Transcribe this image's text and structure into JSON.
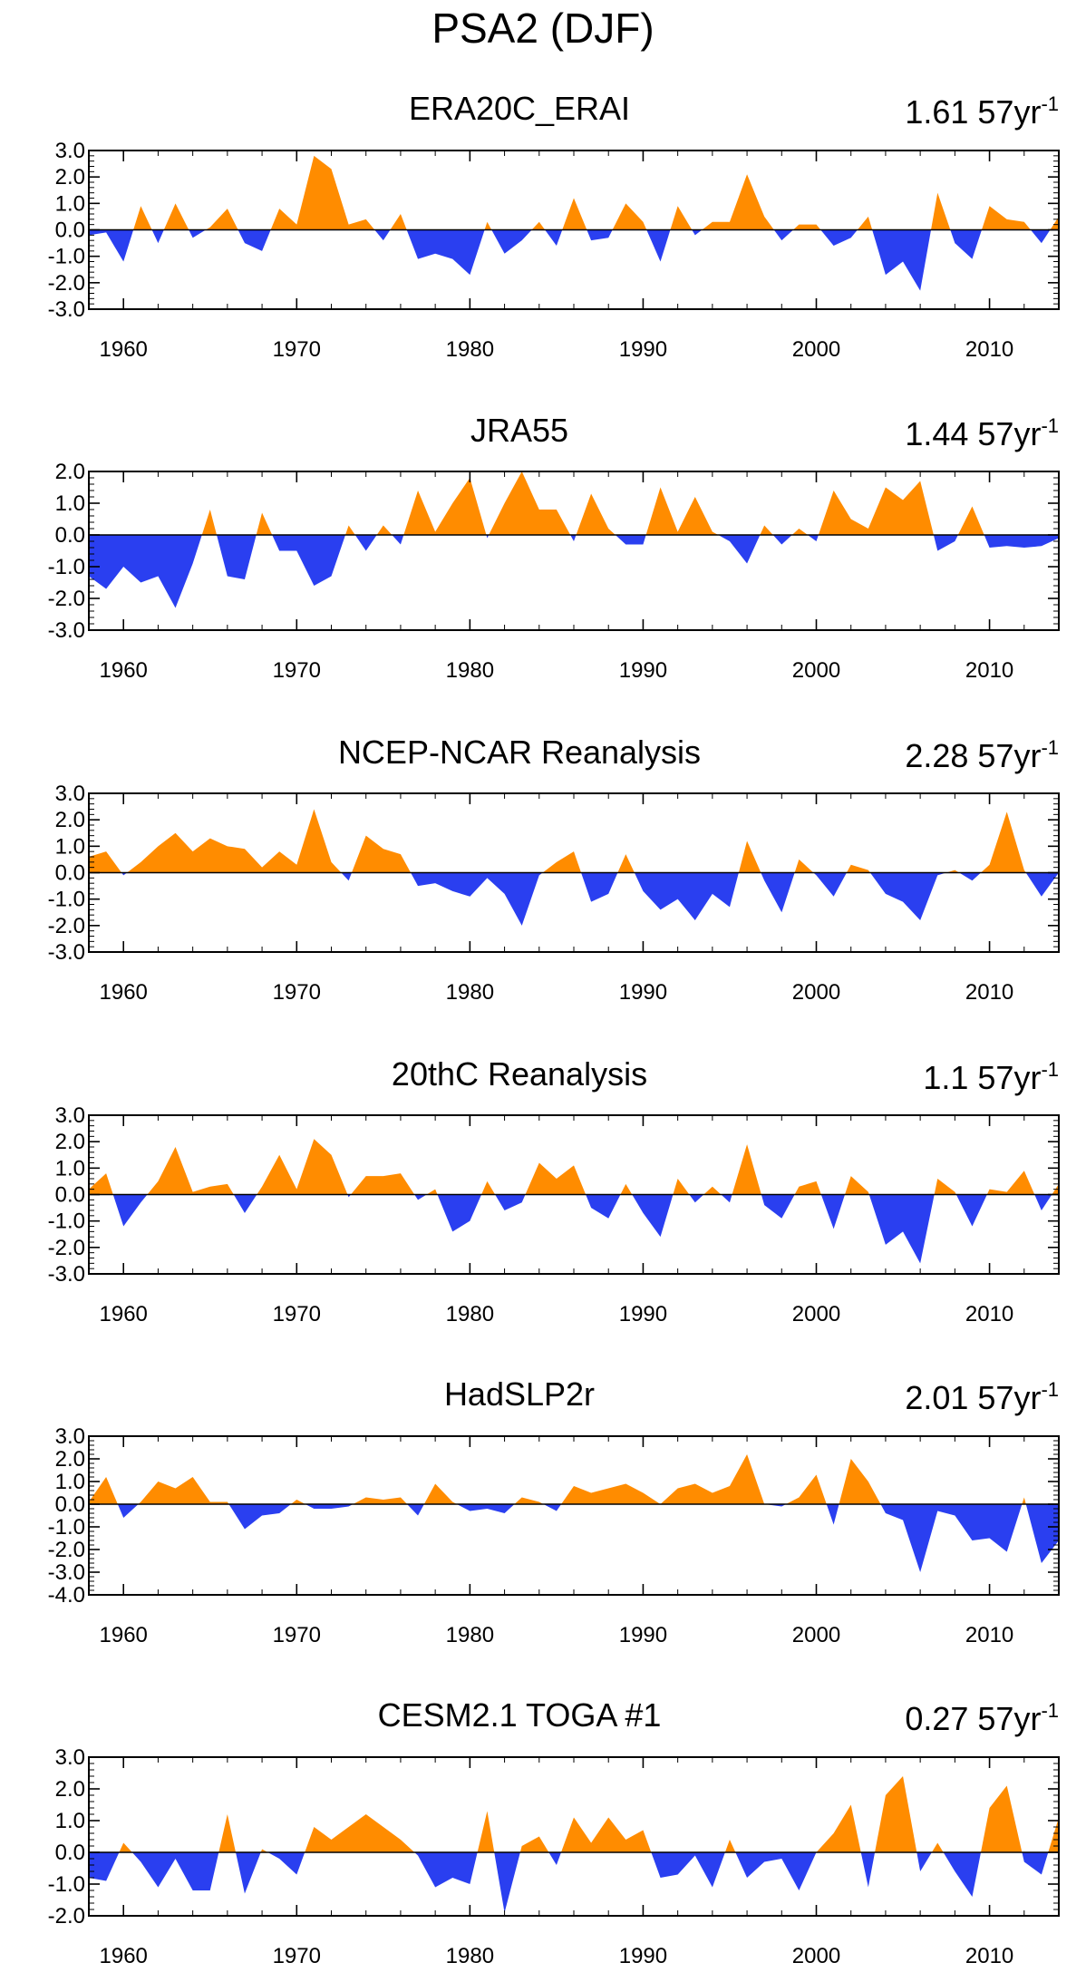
{
  "title": "PSA2 (DJF)",
  "colors": {
    "positive": "#ff8c00",
    "negative": "#2a3ff0",
    "frame": "#000000"
  },
  "chart_data": [
    {
      "type": "area",
      "title": "ERA20C_ERAI",
      "trend_value": "1.61",
      "trend_unit": "57yr",
      "trend_exp": "-1",
      "ylim": [
        -3.0,
        3.0
      ],
      "yticks": [
        "3.0",
        "2.0",
        "1.0",
        "0.0",
        "-1.0",
        "-2.0",
        "-3.0"
      ],
      "xlim": [
        1958,
        2014
      ],
      "xticks": [
        "1960",
        "1970",
        "1980",
        "1990",
        "2000",
        "2010"
      ],
      "x_start": 1958,
      "values": [
        -0.2,
        -0.1,
        -1.2,
        0.9,
        -0.5,
        1.0,
        -0.3,
        0.1,
        0.8,
        -0.5,
        -0.8,
        0.8,
        0.2,
        2.8,
        2.3,
        0.2,
        0.4,
        -0.4,
        0.6,
        -1.1,
        -0.9,
        -1.1,
        -1.7,
        0.3,
        -0.9,
        -0.4,
        0.3,
        -0.6,
        1.2,
        -0.4,
        -0.3,
        1.0,
        0.3,
        -1.2,
        0.9,
        -0.2,
        0.3,
        0.3,
        2.1,
        0.5,
        -0.4,
        0.2,
        0.2,
        -0.6,
        -0.3,
        0.5,
        -1.7,
        -1.2,
        -2.3,
        1.4,
        -0.5,
        -1.1,
        0.9,
        0.4,
        0.3,
        -0.5,
        0.5
      ]
    },
    {
      "type": "area",
      "title": "JRA55",
      "trend_value": "1.44",
      "trend_unit": "57yr",
      "trend_exp": "-1",
      "ylim": [
        -3.0,
        2.0
      ],
      "yticks": [
        "2.0",
        "1.0",
        "0.0",
        "-1.0",
        "-2.0",
        "-3.0"
      ],
      "xlim": [
        1958,
        2014
      ],
      "xticks": [
        "1960",
        "1970",
        "1980",
        "1990",
        "2000",
        "2010"
      ],
      "x_start": 1958,
      "values": [
        -1.3,
        -1.7,
        -1.0,
        -1.5,
        -1.3,
        -2.3,
        -0.9,
        0.8,
        -1.3,
        -1.4,
        0.7,
        -0.5,
        -0.5,
        -1.6,
        -1.3,
        0.3,
        -0.5,
        0.3,
        -0.3,
        1.4,
        0.1,
        1.0,
        1.8,
        -0.1,
        1.0,
        2.0,
        0.8,
        0.8,
        -0.2,
        1.3,
        0.2,
        -0.3,
        -0.3,
        1.5,
        0.1,
        1.2,
        0.1,
        -0.2,
        -0.9,
        0.3,
        -0.3,
        0.2,
        -0.2,
        1.4,
        0.5,
        0.2,
        1.5,
        1.1,
        1.7,
        -0.5,
        -0.2,
        0.9,
        -0.4,
        -0.35,
        -0.4,
        -0.35,
        -0.1
      ]
    },
    {
      "type": "area",
      "title": "NCEP-NCAR Reanalysis",
      "trend_value": "2.28",
      "trend_unit": "57yr",
      "trend_exp": "-1",
      "ylim": [
        -3.0,
        3.0
      ],
      "yticks": [
        "3.0",
        "2.0",
        "1.0",
        "0.0",
        "-1.0",
        "-2.0",
        "-3.0"
      ],
      "xlim": [
        1958,
        2014
      ],
      "xticks": [
        "1960",
        "1970",
        "1980",
        "1990",
        "2000",
        "2010"
      ],
      "x_start": 1958,
      "values": [
        0.6,
        0.8,
        -0.1,
        0.4,
        1.0,
        1.5,
        0.8,
        1.3,
        1.0,
        0.9,
        0.2,
        0.8,
        0.3,
        2.4,
        0.4,
        -0.3,
        1.4,
        0.9,
        0.7,
        -0.5,
        -0.4,
        -0.7,
        -0.9,
        -0.2,
        -0.8,
        -2.0,
        -0.1,
        0.4,
        0.8,
        -1.1,
        -0.8,
        0.7,
        -0.7,
        -1.4,
        -1.0,
        -1.8,
        -0.8,
        -1.3,
        1.2,
        -0.3,
        -1.5,
        0.5,
        -0.1,
        -0.9,
        0.3,
        0.1,
        -0.8,
        -1.1,
        -1.8,
        -0.1,
        0.1,
        -0.3,
        0.3,
        2.3,
        0.1,
        -0.9,
        0.0
      ]
    },
    {
      "type": "area",
      "title": "20thC Reanalysis",
      "trend_value": "1.1",
      "trend_unit": "57yr",
      "trend_exp": "-1",
      "ylim": [
        -3.0,
        3.0
      ],
      "yticks": [
        "3.0",
        "2.0",
        "1.0",
        "0.0",
        "-1.0",
        "-2.0",
        "-3.0"
      ],
      "xlim": [
        1958,
        2014
      ],
      "xticks": [
        "1960",
        "1970",
        "1980",
        "1990",
        "2000",
        "2010"
      ],
      "x_start": 1958,
      "values": [
        0.2,
        0.8,
        -1.2,
        -0.3,
        0.5,
        1.8,
        0.1,
        0.3,
        0.4,
        -0.7,
        0.3,
        1.5,
        0.2,
        2.1,
        1.5,
        -0.1,
        0.7,
        0.7,
        0.8,
        -0.2,
        0.2,
        -1.4,
        -1.0,
        0.5,
        -0.6,
        -0.3,
        1.2,
        0.6,
        1.1,
        -0.5,
        -0.9,
        0.4,
        -0.7,
        -1.6,
        0.6,
        -0.3,
        0.3,
        -0.3,
        1.9,
        -0.4,
        -0.9,
        0.3,
        0.5,
        -1.3,
        0.7,
        0.1,
        -1.9,
        -1.4,
        -2.6,
        0.6,
        0.1,
        -1.2,
        0.2,
        0.1,
        0.9,
        -0.6,
        0.4
      ]
    },
    {
      "type": "area",
      "title": "HadSLP2r",
      "trend_value": "2.01",
      "trend_unit": "57yr",
      "trend_exp": "-1",
      "ylim": [
        -4.0,
        3.0
      ],
      "yticks": [
        "3.0",
        "2.0",
        "1.0",
        "0.0",
        "-1.0",
        "-2.0",
        "-3.0",
        "-4.0"
      ],
      "xlim": [
        1958,
        2014
      ],
      "xticks": [
        "1960",
        "1970",
        "1980",
        "1990",
        "2000",
        "2010"
      ],
      "x_start": 1958,
      "values": [
        0.1,
        1.2,
        -0.6,
        0.1,
        1.0,
        0.7,
        1.2,
        0.1,
        0.1,
        -1.1,
        -0.5,
        -0.4,
        0.2,
        -0.2,
        -0.2,
        -0.1,
        0.3,
        0.2,
        0.3,
        -0.5,
        0.9,
        0.1,
        -0.3,
        -0.2,
        -0.4,
        0.3,
        0.1,
        -0.3,
        0.8,
        0.5,
        0.7,
        0.9,
        0.5,
        0.0,
        0.7,
        0.9,
        0.5,
        0.8,
        2.2,
        0.0,
        -0.1,
        0.3,
        1.3,
        -0.9,
        2.0,
        1.0,
        -0.4,
        -0.7,
        -3.0,
        -0.3,
        -0.5,
        -1.6,
        -1.5,
        -2.1,
        0.3,
        -2.6,
        -1.6
      ]
    },
    {
      "type": "area",
      "title": "CESM2.1 TOGA #1",
      "trend_value": "0.27",
      "trend_unit": "57yr",
      "trend_exp": "-1",
      "ylim": [
        -2.0,
        3.0
      ],
      "yticks": [
        "3.0",
        "2.0",
        "1.0",
        "0.0",
        "-1.0",
        "-2.0"
      ],
      "xlim": [
        1958,
        2014
      ],
      "xticks": [
        "1960",
        "1970",
        "1980",
        "1990",
        "2000",
        "2010"
      ],
      "x_start": 1958,
      "values": [
        -0.8,
        -0.9,
        0.3,
        -0.3,
        -1.1,
        -0.2,
        -1.2,
        -1.2,
        1.2,
        -1.3,
        0.1,
        -0.2,
        -0.7,
        0.8,
        0.4,
        0.8,
        1.2,
        0.8,
        0.4,
        -0.1,
        -1.1,
        -0.8,
        -1.0,
        1.3,
        -1.9,
        0.2,
        0.5,
        -0.4,
        1.1,
        0.3,
        1.1,
        0.4,
        0.7,
        -0.8,
        -0.7,
        -0.1,
        -1.1,
        0.4,
        -0.8,
        -0.3,
        -0.2,
        -1.2,
        0.0,
        0.6,
        1.5,
        -1.1,
        1.8,
        2.4,
        -0.6,
        0.3,
        -0.6,
        -1.4,
        1.4,
        2.1,
        -0.3,
        -0.7,
        1.1
      ]
    }
  ]
}
